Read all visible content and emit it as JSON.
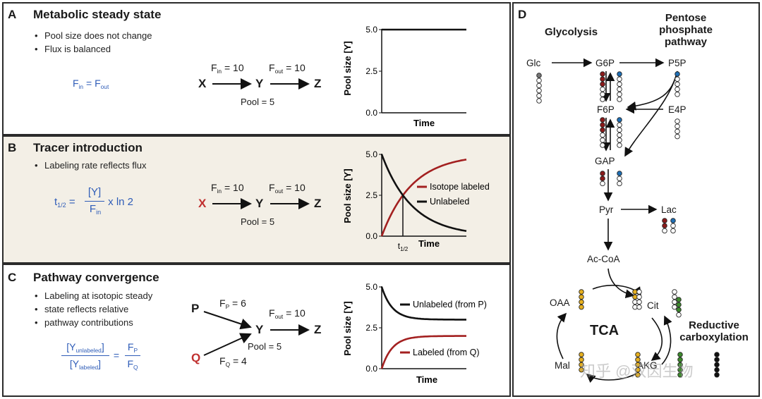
{
  "panel_a": {
    "letter": "A",
    "title": "Metabolic steady state",
    "bullets": [
      "Pool size does not change",
      "Flux is balanced"
    ],
    "equation": {
      "f": "F",
      "in": "in",
      "eq": " = ",
      "out": "out"
    },
    "diagram": {
      "x": "X",
      "y": "Y",
      "z": "Z",
      "fin_label": "F",
      "fin_sub": "in",
      "fin_value": " = 10",
      "fout_label": "F",
      "fout_sub": "out",
      "fout_value": " = 10",
      "pool": "Pool = 5"
    },
    "chart_data": {
      "type": "line",
      "ylabel": "Pool size [Y]",
      "xlabel": "Time",
      "yticks": [
        "5.0",
        "2.5",
        "0.0"
      ],
      "ylim": [
        0,
        5
      ],
      "series": [
        {
          "values": [
            5.0,
            5.0,
            5.0,
            5.0,
            5.0
          ],
          "color": "#111111"
        }
      ]
    }
  },
  "panel_b": {
    "letter": "B",
    "title": "Tracer introduction",
    "bullets": [
      "Labeling rate reflects flux"
    ],
    "equation": {
      "t": "t",
      "sub": "1/2",
      "eq": " = ",
      "num": "[Y]",
      "den_f": "F",
      "den_sub": "in",
      "tail": " x ln 2"
    },
    "diagram": {
      "x": "X",
      "y": "Y",
      "z": "Z",
      "fin_label": "F",
      "fin_sub": "in",
      "fin_value": " = 10",
      "fout_label": "F",
      "fout_sub": "out",
      "fout_value": " = 10",
      "pool": "Pool = 5"
    },
    "chart_data": {
      "type": "line",
      "ylabel": "Pool size [Y]",
      "xlabel": "Time",
      "xtick": "t",
      "xtick_sub": "1/2",
      "yticks": [
        "5.0",
        "2.5",
        "0.0"
      ],
      "ylim": [
        0,
        5
      ],
      "half_time": 0.25,
      "series": [
        {
          "name": "Isotope labeled",
          "color": "#a32020",
          "model": "rise",
          "plateau": 5,
          "rate": 2.77
        },
        {
          "name": "Unlabeled",
          "color": "#111111",
          "model": "decay",
          "start": 5,
          "rate": 2.77
        }
      ]
    }
  },
  "panel_c": {
    "letter": "C",
    "title": "Pathway convergence",
    "bullets": [
      "Labeling at isotopic steady",
      "state reflects relative",
      "pathway contributions"
    ],
    "equation": {
      "num": "[Y",
      "num_sub": "unlabeled",
      "num_close": "]",
      "den": "[Y",
      "den_sub": "labeled",
      "den_close": "]",
      "eq": " = ",
      "fp": "F",
      "fp_sub": "P",
      "fq": "F",
      "fq_sub": "Q"
    },
    "diagram": {
      "p": "P",
      "q": "Q",
      "y": "Y",
      "z": "Z",
      "fp_label": "F",
      "fp_sub": "P",
      "fp_value": " = 6",
      "fq_label": "F",
      "fq_sub": "Q",
      "fq_value": " = 4",
      "fout_label": "F",
      "fout_sub": "out",
      "fout_value": " = 10",
      "pool": "Pool = 5"
    },
    "chart_data": {
      "type": "line",
      "ylabel": "Pool size [Y]",
      "xlabel": "Time",
      "yticks": [
        "5.0",
        "2.5",
        "0.0"
      ],
      "ylim": [
        0,
        5
      ],
      "series": [
        {
          "name": "Unlabeled (from P)",
          "color": "#111111",
          "model": "decay_to",
          "start": 5,
          "plateau": 3,
          "rate": 8
        },
        {
          "name": "Labeled (from Q)",
          "color": "#a32020",
          "model": "rise",
          "plateau": 2,
          "rate": 8
        }
      ]
    }
  },
  "panel_d": {
    "letter": "D",
    "headers": {
      "glycolysis": "Glycolysis",
      "pentose": [
        "Pentose",
        "phosphate",
        "pathway"
      ],
      "reductive": [
        "Reductive",
        "carboxylation"
      ]
    },
    "metabolites": {
      "glc": "Glc",
      "g6p": "G6P",
      "p5p": "P5P",
      "f6p": "F6P",
      "e4p": "E4P",
      "gap": "GAP",
      "pyr": "Pyr",
      "lac": "Lac",
      "accoa": "Ac-CoA",
      "oaa": "OAA",
      "cit": "Cit",
      "mal": "Mal",
      "akg": "AKG"
    },
    "cycle_label": "TCA",
    "watermark": "知乎 @双因生物",
    "colors": {
      "red": "#8b1a1a",
      "blue": "#1f6fb5",
      "gold": "#e6b020",
      "green": "#3e8a2e",
      "gray": "#777777",
      "black": "#111111"
    }
  }
}
